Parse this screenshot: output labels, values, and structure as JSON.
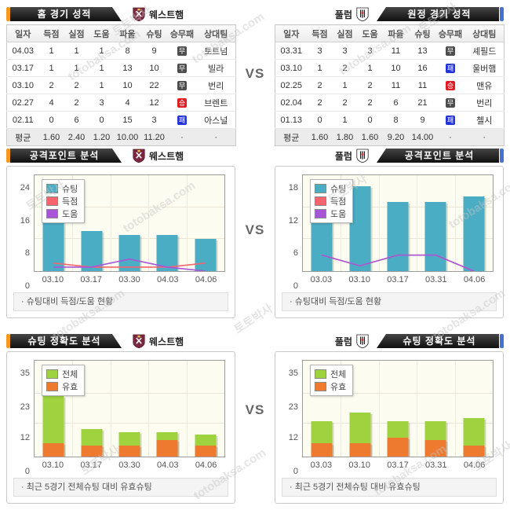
{
  "page": {
    "vs_label": "VS"
  },
  "watermark": {
    "brand": "토토박사",
    "domain": "totobaksa.com"
  },
  "results_legend": {
    "win": "승",
    "draw": "무",
    "loss": "패"
  },
  "panels": {
    "home_record": {
      "title": "홈 경기 성적",
      "team": "웨스트햄",
      "columns": [
        "일자",
        "득점",
        "실점",
        "도움",
        "파울",
        "슈팅",
        "승무패",
        "상대팀"
      ],
      "rows": [
        {
          "cells": [
            "04.03",
            "1",
            "1",
            "1",
            "8",
            "9"
          ],
          "result": "무",
          "result_type": "draw",
          "opponent": "토트넘"
        },
        {
          "cells": [
            "03.17",
            "1",
            "1",
            "1",
            "13",
            "10"
          ],
          "result": "무",
          "result_type": "draw",
          "opponent": "빌라"
        },
        {
          "cells": [
            "03.10",
            "2",
            "2",
            "1",
            "10",
            "22"
          ],
          "result": "무",
          "result_type": "draw",
          "opponent": "번리"
        },
        {
          "cells": [
            "02.27",
            "4",
            "2",
            "3",
            "4",
            "12"
          ],
          "result": "승",
          "result_type": "win",
          "opponent": "브렌트"
        },
        {
          "cells": [
            "02.11",
            "0",
            "6",
            "0",
            "15",
            "3"
          ],
          "result": "패",
          "result_type": "loss",
          "opponent": "아스널"
        }
      ],
      "avg_row": [
        "평균",
        "1.60",
        "2.40",
        "1.20",
        "10.00",
        "11.20",
        "·",
        "·"
      ]
    },
    "away_record": {
      "title": "원정 경기 성적",
      "team": "풀럼",
      "columns": [
        "일자",
        "득점",
        "실점",
        "도움",
        "파울",
        "슈팅",
        "승무패",
        "상대팀"
      ],
      "rows": [
        {
          "cells": [
            "03.31",
            "3",
            "3",
            "3",
            "11",
            "13"
          ],
          "result": "무",
          "result_type": "draw",
          "opponent": "셰필드"
        },
        {
          "cells": [
            "03.10",
            "1",
            "2",
            "1",
            "10",
            "16"
          ],
          "result": "패",
          "result_type": "loss",
          "opponent": "울버햄"
        },
        {
          "cells": [
            "02.25",
            "2",
            "1",
            "2",
            "11",
            "11"
          ],
          "result": "승",
          "result_type": "win",
          "opponent": "맨유"
        },
        {
          "cells": [
            "02.04",
            "2",
            "2",
            "2",
            "6",
            "21"
          ],
          "result": "무",
          "result_type": "draw",
          "opponent": "번리"
        },
        {
          "cells": [
            "01.13",
            "0",
            "1",
            "0",
            "8",
            "9"
          ],
          "result": "패",
          "result_type": "loss",
          "opponent": "첼시"
        }
      ],
      "avg_row": [
        "평균",
        "1.60",
        "1.80",
        "1.60",
        "9.20",
        "14.00",
        "·",
        "·"
      ]
    }
  },
  "chart_data": [
    {
      "id": "attack-home",
      "type": "bar",
      "title": "공격포인트 분석",
      "team": "웨스트햄",
      "categories": [
        "03.10",
        "03.17",
        "03.30",
        "04.03",
        "04.06"
      ],
      "series": [
        {
          "name": "슈팅",
          "kind": "bar",
          "color": "#4aadc4",
          "values": [
            22,
            10,
            9,
            9,
            8
          ]
        },
        {
          "name": "득점",
          "kind": "line",
          "color": "#f4656c",
          "values": [
            2,
            1,
            1,
            1,
            2
          ]
        },
        {
          "name": "도움",
          "kind": "line",
          "color": "#a955d8",
          "values": [
            1,
            1,
            3,
            1,
            0
          ]
        }
      ],
      "yticks": [
        0,
        8,
        16,
        24
      ],
      "ylim": [
        0,
        24
      ],
      "legend_position": "top-left",
      "grid": true,
      "note": "· 슈팅대비 득점/도움 현황"
    },
    {
      "id": "attack-away",
      "type": "bar",
      "title": "공격포인트 분석",
      "team": "풀럼",
      "categories": [
        "03.03",
        "03.10",
        "03.17",
        "03.31",
        "04.06"
      ],
      "series": [
        {
          "name": "슈팅",
          "kind": "bar",
          "color": "#4aadc4",
          "values": [
            13,
            16,
            13,
            13,
            14
          ]
        },
        {
          "name": "득점",
          "kind": "line",
          "color": "#f4656c",
          "values": [
            3,
            1,
            3,
            3,
            0
          ]
        },
        {
          "name": "도움",
          "kind": "line",
          "color": "#a955d8",
          "values": [
            3,
            1,
            3,
            3,
            0
          ]
        }
      ],
      "yticks": [
        0,
        6,
        12,
        18
      ],
      "ylim": [
        0,
        18
      ],
      "legend_position": "top-left",
      "grid": true,
      "note": "· 슈팅대비 득점/도움 현황"
    },
    {
      "id": "accuracy-home",
      "type": "bar",
      "title": "슈팅 정확도 분석",
      "team": "웨스트햄",
      "categories": [
        "03.10",
        "03.17",
        "03.30",
        "04.03",
        "04.06"
      ],
      "series": [
        {
          "name": "전체",
          "kind": "bar",
          "color": "#9ed23f",
          "values": [
            22,
            10,
            9,
            9,
            8
          ]
        },
        {
          "name": "유효",
          "kind": "bar",
          "color": "#ee7a30",
          "values": [
            5,
            4,
            4,
            6,
            4
          ]
        }
      ],
      "yticks": [
        0,
        12,
        23,
        35
      ],
      "ylim": [
        0,
        35
      ],
      "legend_position": "top-left",
      "grid": true,
      "note": "· 최근 5경기 전체슈팅 대비 유효슈팅"
    },
    {
      "id": "accuracy-away",
      "type": "bar",
      "title": "슈팅 정확도 분석",
      "team": "풀럼",
      "categories": [
        "03.03",
        "03.10",
        "03.17",
        "03.31",
        "04.06"
      ],
      "series": [
        {
          "name": "전체",
          "kind": "bar",
          "color": "#9ed23f",
          "values": [
            13,
            16,
            13,
            13,
            14
          ]
        },
        {
          "name": "유효",
          "kind": "bar",
          "color": "#ee7a30",
          "values": [
            5,
            5,
            7,
            6,
            4
          ]
        }
      ],
      "yticks": [
        0,
        12,
        23,
        35
      ],
      "ylim": [
        0,
        35
      ],
      "legend_position": "top-left",
      "grid": true,
      "note": "· 최근 5경기 전체슈팅 대비 유효슈팅"
    }
  ]
}
